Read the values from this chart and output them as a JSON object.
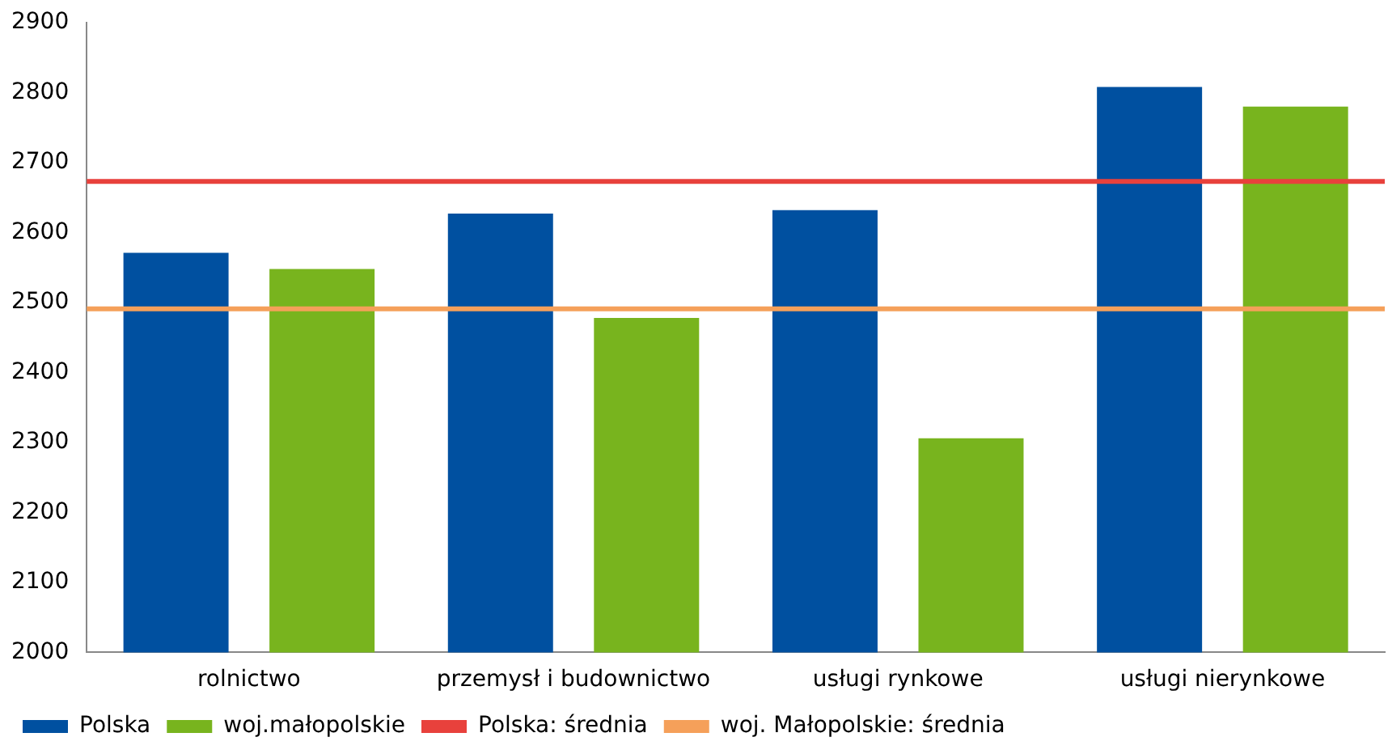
{
  "chart_data": {
    "type": "bar",
    "categories": [
      "rolnictwo",
      "przemysł i budownictwo",
      "usługi rynkowe",
      "usługi nierynkowe"
    ],
    "series": [
      {
        "name": "Polska",
        "color": "#0050a0",
        "values": [
          2571,
          2627,
          2632,
          2808
        ]
      },
      {
        "name": "woj.małopolskie",
        "color": "#78b41e",
        "values": [
          2548,
          2478,
          2306,
          2780
        ]
      }
    ],
    "ylim": [
      2000,
      2900
    ],
    "yticks": [
      2000,
      2100,
      2200,
      2300,
      2400,
      2500,
      2600,
      2700,
      2800,
      2900
    ],
    "ref_lines": [
      {
        "axis": "y",
        "value": 2673,
        "label": "Polska: średnia",
        "color": "#e8413c"
      },
      {
        "axis": "y",
        "value": 2491,
        "label": "woj. Małopolskie: średnia",
        "color": "#f5a05a"
      }
    ],
    "grid": false,
    "legend": "bottom"
  }
}
